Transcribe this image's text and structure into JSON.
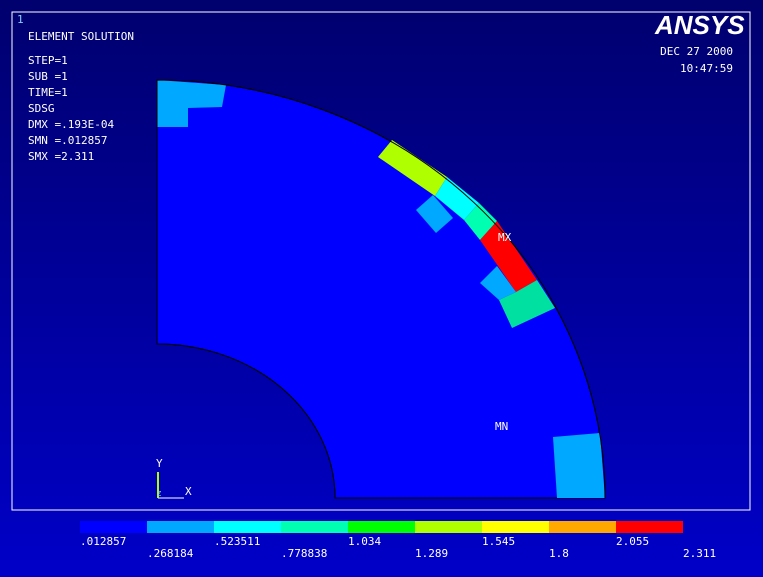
{
  "window_number": "1",
  "header": {
    "title": "ELEMENT SOLUTION",
    "info": [
      "STEP=1",
      "SUB =1",
      "TIME=1",
      "SDSG",
      "DMX =.193E-04",
      "SMN =.012857",
      "SMX =2.311"
    ]
  },
  "logo": "ANSYS",
  "date": "DEC 27 2000",
  "time": "10:47:59",
  "markers": {
    "max": "MX",
    "min": "MN"
  },
  "triad": {
    "y": "Y",
    "x": "X",
    "z": "Z"
  },
  "legend": {
    "labels": [
      ".012857",
      ".268184",
      ".523511",
      ".778838",
      "1.034",
      "1.289",
      "1.545",
      "1.8",
      "2.055",
      "2.311"
    ],
    "colors": [
      "#0000ff",
      "#00a8ff",
      "#00ffff",
      "#00ffb0",
      "#00ff00",
      "#b0ff00",
      "#ffff00",
      "#ffa800",
      "#ff0000"
    ]
  }
}
